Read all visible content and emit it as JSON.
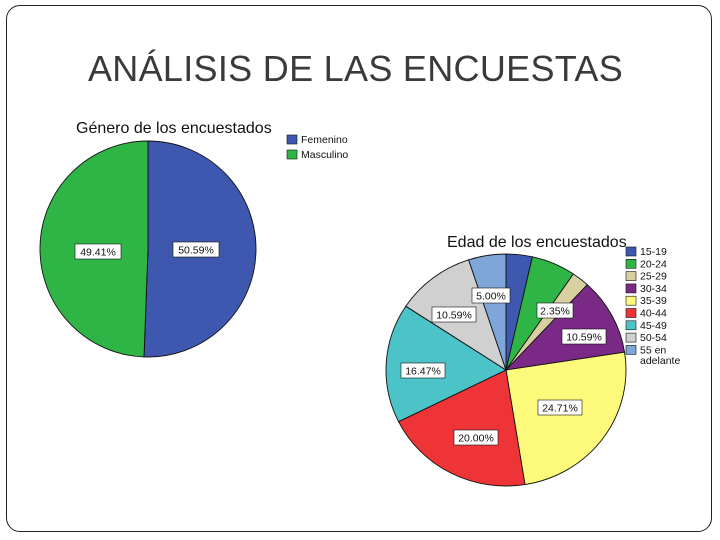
{
  "slide": {
    "title": "ANÁLISIS DE LAS ENCUESTAS"
  },
  "chart_data": [
    {
      "type": "pie",
      "title": "Género de los encuestados",
      "categories": [
        "Femenino",
        "Masculino"
      ],
      "values": [
        50.59,
        49.41
      ],
      "labels": [
        "50.59%",
        "49.41%"
      ],
      "colors": [
        "#3e58b0",
        "#2eb545"
      ],
      "legend_placement": "top-right"
    },
    {
      "type": "pie",
      "title": "Edad de los encuestados",
      "categories": [
        "15-19",
        "20-24",
        "25-29",
        "30-34",
        "35-39",
        "40-44",
        "45-49",
        "50-54",
        "55 en adelante"
      ],
      "legend_lines": [
        [
          "15-19"
        ],
        [
          "20-24"
        ],
        [
          "25-29"
        ],
        [
          "30-34"
        ],
        [
          "35-39"
        ],
        [
          "40-44"
        ],
        [
          "45-49"
        ],
        [
          "50-54"
        ],
        [
          "55 en",
          "adelante"
        ]
      ],
      "values": [
        3.5,
        5.9,
        2.35,
        10.59,
        24.71,
        20.0,
        16.47,
        10.59,
        5.0
      ],
      "labels": [
        "",
        "",
        "2.35%",
        "10.59%",
        "24.71%",
        "20.00%",
        "16.47%",
        "10.59%",
        "5.00%"
      ],
      "colors": [
        "#3e58b0",
        "#2eb545",
        "#d8d0a0",
        "#7a2a86",
        "#fdf97a",
        "#ef3438",
        "#4bc3c7",
        "#d0d0d0",
        "#7ea6d8"
      ],
      "legend_placement": "right"
    }
  ]
}
